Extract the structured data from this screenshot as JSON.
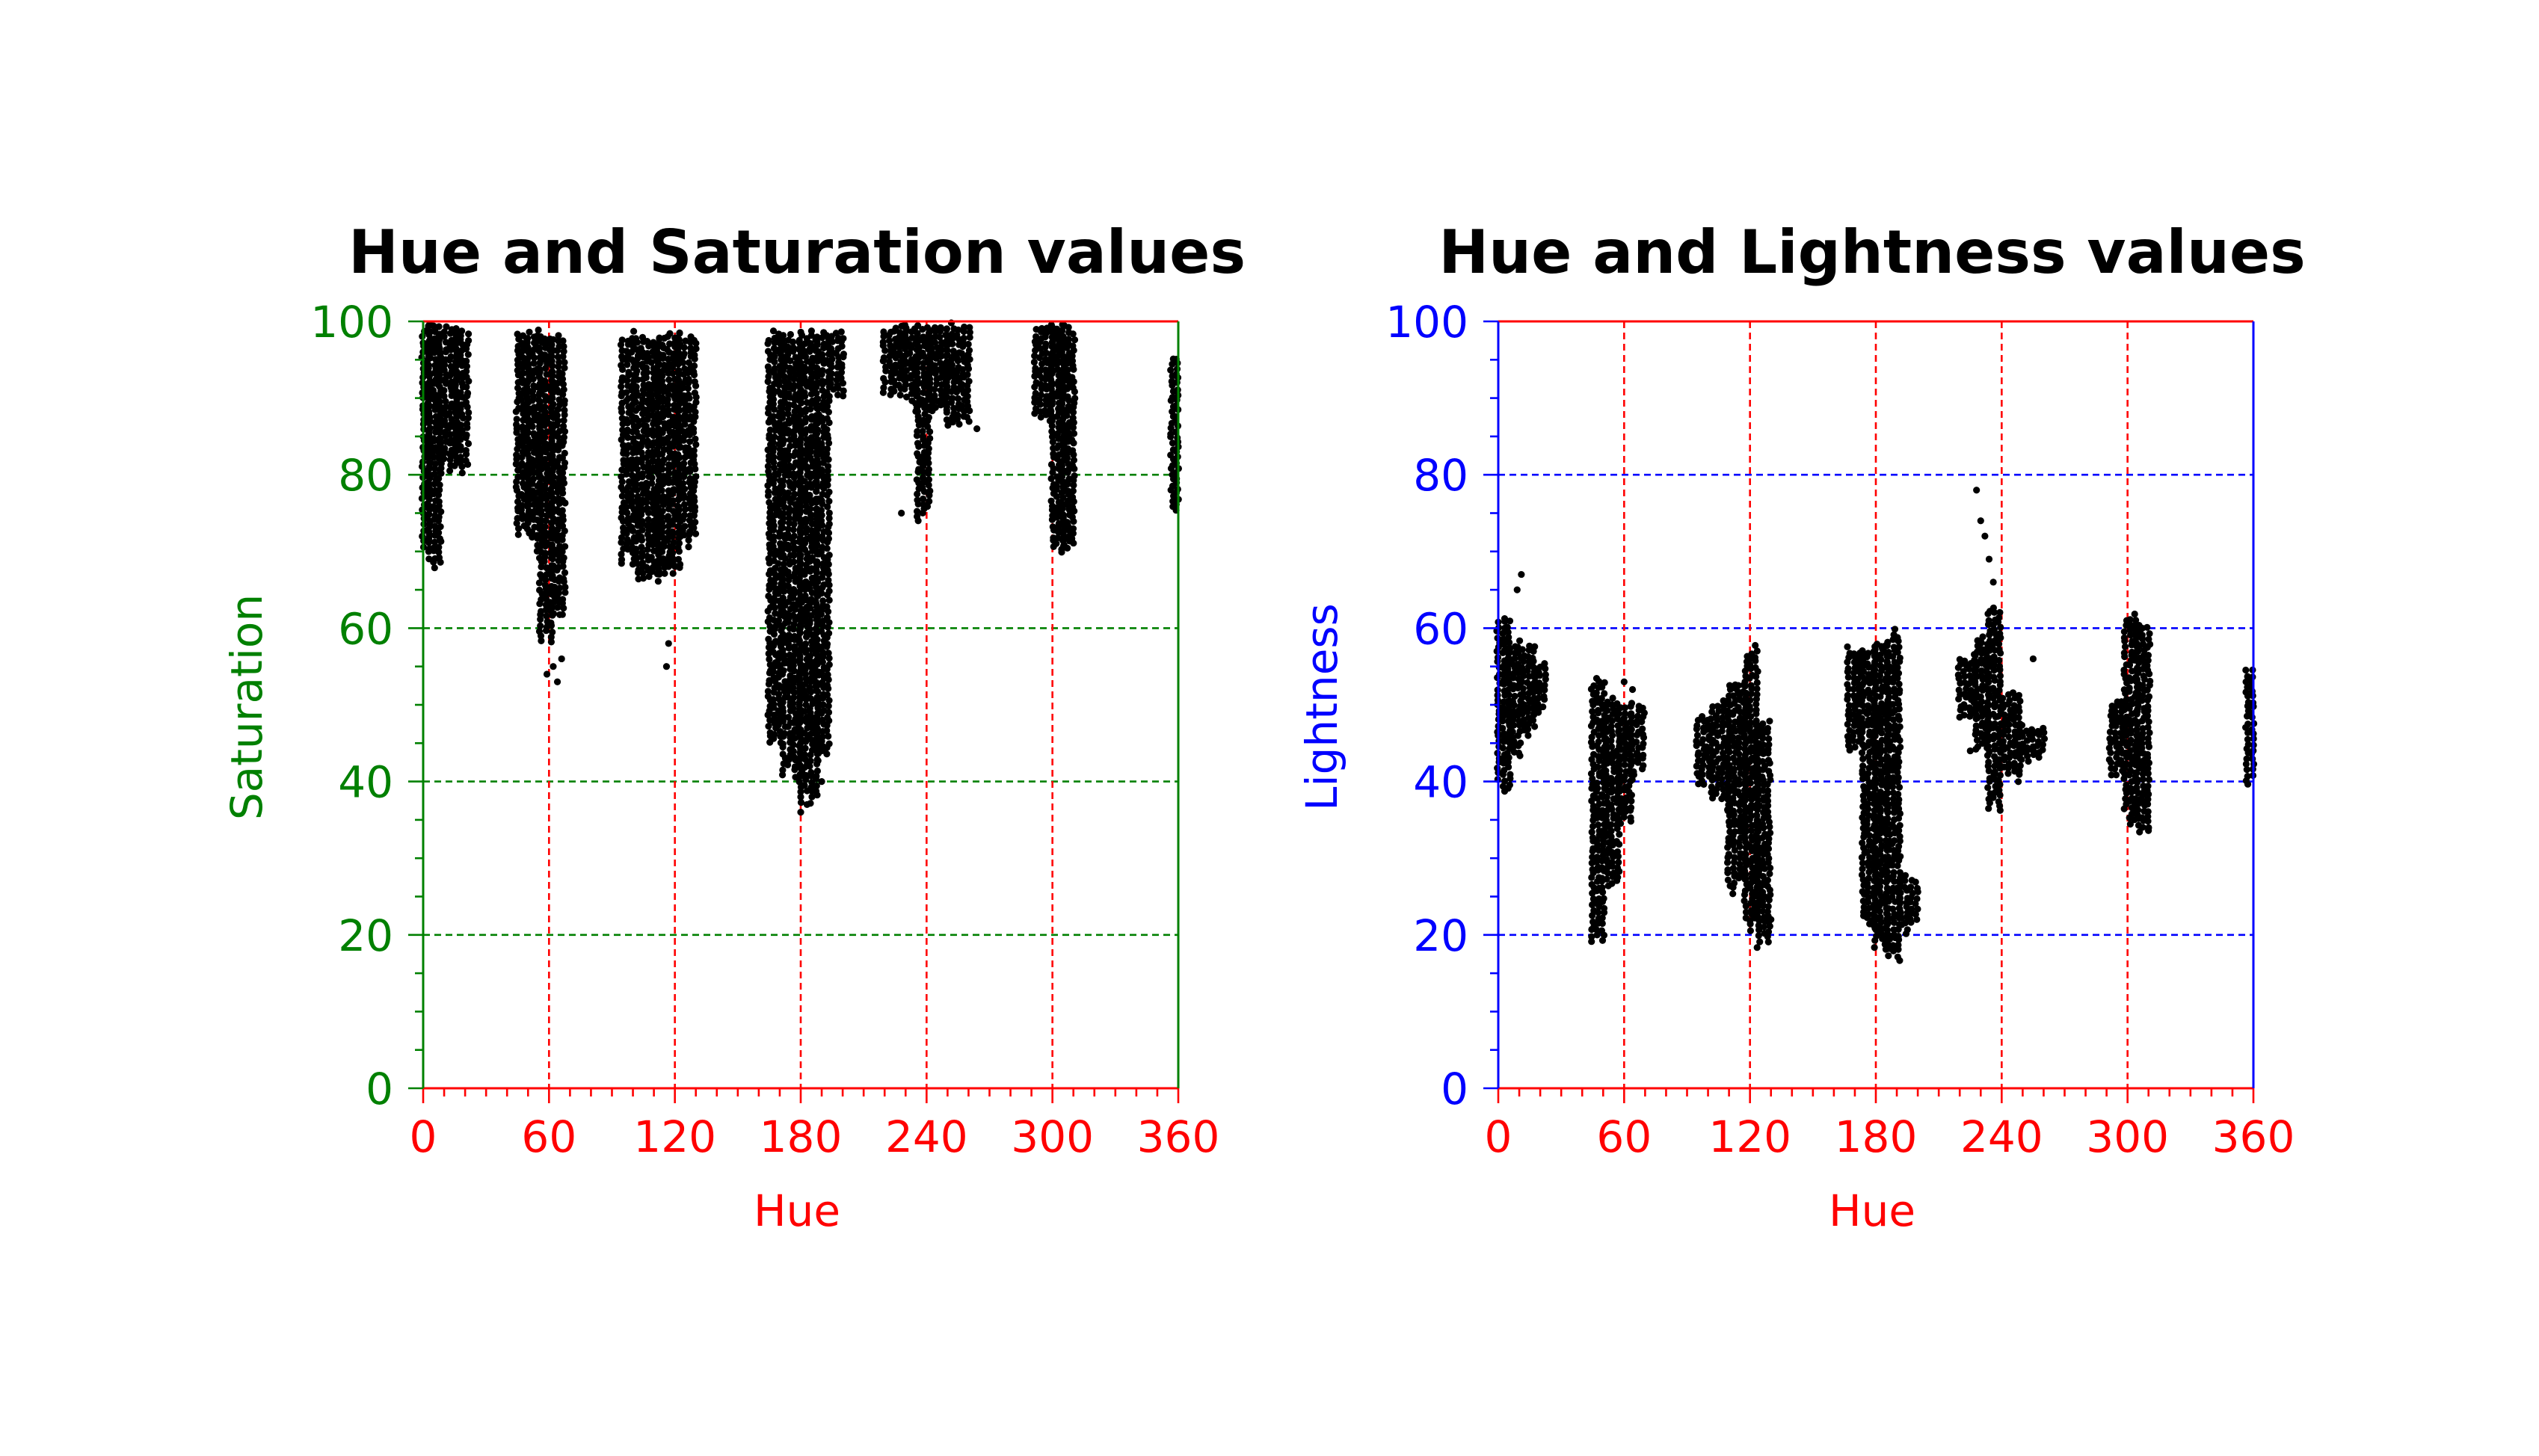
{
  "colors": {
    "hue_axis": "#ff0000",
    "saturation_axis": "#008000",
    "lightness_axis": "#0000ff",
    "points": "#000000",
    "background": "#ffffff"
  },
  "chart_data": [
    {
      "type": "scatter",
      "title": "Hue and Saturation values",
      "xlabel": "Hue",
      "ylabel": "Saturation",
      "xlim": [
        0,
        360
      ],
      "ylim": [
        0,
        100
      ],
      "xticks": [
        0,
        60,
        120,
        180,
        240,
        300,
        360
      ],
      "yticks": [
        0,
        20,
        40,
        60,
        80,
        100
      ],
      "x_minor_step": 10,
      "y_minor_step": 5,
      "grid": true,
      "grid_style": "dashed",
      "x_axis_color": "#ff0000",
      "y_axis_color": "#008000",
      "clusters": [
        {
          "x": [
            0,
            3
          ],
          "y_top": 100,
          "y_bottom": 70
        },
        {
          "x": [
            3,
            8
          ],
          "y_top": 100,
          "y_bottom": 67
        },
        {
          "x": [
            8,
            16
          ],
          "y_top": 100,
          "y_bottom": 80
        },
        {
          "x": [
            16,
            23
          ],
          "y_top": 100,
          "y_bottom": 80
        },
        {
          "x": [
            45,
            50
          ],
          "y_top": 99,
          "y_bottom": 72
        },
        {
          "x": [
            50,
            56
          ],
          "y_top": 99,
          "y_bottom": 70
        },
        {
          "x": [
            56,
            62
          ],
          "y_top": 99,
          "y_bottom": 58
        },
        {
          "x": [
            62,
            69
          ],
          "y_top": 99,
          "y_bottom": 60
        },
        {
          "x": [
            95,
            102
          ],
          "y_top": 99,
          "y_bottom": 68
        },
        {
          "x": [
            102,
            112
          ],
          "y_top": 99,
          "y_bottom": 66
        },
        {
          "x": [
            112,
            122
          ],
          "y_top": 99,
          "y_bottom": 66
        },
        {
          "x": [
            122,
            130
          ],
          "y_top": 99,
          "y_bottom": 70
        },
        {
          "x": [
            165,
            172
          ],
          "y_top": 99,
          "y_bottom": 44
        },
        {
          "x": [
            172,
            180
          ],
          "y_top": 99,
          "y_bottom": 40
        },
        {
          "x": [
            180,
            188
          ],
          "y_top": 99,
          "y_bottom": 37
        },
        {
          "x": [
            188,
            195
          ],
          "y_top": 99,
          "y_bottom": 42
        },
        {
          "x": [
            195,
            200
          ],
          "y_top": 99,
          "y_bottom": 90
        },
        {
          "x": [
            220,
            230
          ],
          "y_top": 100,
          "y_bottom": 90
        },
        {
          "x": [
            230,
            236
          ],
          "y_top": 100,
          "y_bottom": 88
        },
        {
          "x": [
            236,
            242
          ],
          "y_top": 100,
          "y_bottom": 74
        },
        {
          "x": [
            242,
            250
          ],
          "y_top": 100,
          "y_bottom": 88
        },
        {
          "x": [
            250,
            260
          ],
          "y_top": 100,
          "y_bottom": 86
        },
        {
          "x": [
            292,
            300
          ],
          "y_top": 100,
          "y_bottom": 87
        },
        {
          "x": [
            300,
            305
          ],
          "y_top": 100,
          "y_bottom": 69
        },
        {
          "x": [
            305,
            310
          ],
          "y_top": 100,
          "y_bottom": 70
        },
        {
          "x": [
            357,
            360
          ],
          "y_top": 96,
          "y_bottom": 74
        }
      ],
      "outliers": [
        [
          59,
          54
        ],
        [
          62,
          55
        ],
        [
          64,
          53
        ],
        [
          66,
          56
        ],
        [
          116,
          55
        ],
        [
          117,
          58
        ],
        [
          180,
          36
        ],
        [
          183,
          37
        ],
        [
          190,
          40
        ],
        [
          228,
          75
        ],
        [
          236,
          74
        ],
        [
          264,
          86
        ]
      ]
    },
    {
      "type": "scatter",
      "title": "Hue and Lightness values",
      "xlabel": "Hue",
      "ylabel": "Lightness",
      "xlim": [
        0,
        360
      ],
      "ylim": [
        0,
        100
      ],
      "xticks": [
        0,
        60,
        120,
        180,
        240,
        300,
        360
      ],
      "yticks": [
        0,
        20,
        40,
        60,
        80,
        100
      ],
      "x_minor_step": 10,
      "y_minor_step": 5,
      "grid": true,
      "grid_style": "dashed",
      "x_axis_color": "#ff0000",
      "y_axis_color": "#0000ff",
      "clusters": [
        {
          "x": [
            0,
            5
          ],
          "y_top": 62,
          "y_bottom": 38
        },
        {
          "x": [
            5,
            12
          ],
          "y_top": 59,
          "y_bottom": 42
        },
        {
          "x": [
            12,
            17
          ],
          "y_top": 58,
          "y_bottom": 45
        },
        {
          "x": [
            17,
            24
          ],
          "y_top": 56,
          "y_bottom": 48
        },
        {
          "x": [
            45,
            52
          ],
          "y_top": 54,
          "y_bottom": 19
        },
        {
          "x": [
            52,
            58
          ],
          "y_top": 51,
          "y_bottom": 26
        },
        {
          "x": [
            58,
            64
          ],
          "y_top": 51,
          "y_bottom": 34
        },
        {
          "x": [
            64,
            70
          ],
          "y_top": 50,
          "y_bottom": 40
        },
        {
          "x": [
            95,
            102
          ],
          "y_top": 49,
          "y_bottom": 39
        },
        {
          "x": [
            102,
            110
          ],
          "y_top": 51,
          "y_bottom": 36
        },
        {
          "x": [
            110,
            118
          ],
          "y_top": 53,
          "y_bottom": 25
        },
        {
          "x": [
            118,
            124
          ],
          "y_top": 58,
          "y_bottom": 20
        },
        {
          "x": [
            124,
            130
          ],
          "y_top": 48,
          "y_bottom": 18
        },
        {
          "x": [
            167,
            174
          ],
          "y_top": 58,
          "y_bottom": 43
        },
        {
          "x": [
            174,
            180
          ],
          "y_top": 58,
          "y_bottom": 20
        },
        {
          "x": [
            180,
            186
          ],
          "y_top": 59,
          "y_bottom": 18
        },
        {
          "x": [
            186,
            192
          ],
          "y_top": 60,
          "y_bottom": 16
        },
        {
          "x": [
            192,
            200
          ],
          "y_top": 28,
          "y_bottom": 20
        },
        {
          "x": [
            220,
            228
          ],
          "y_top": 57,
          "y_bottom": 47
        },
        {
          "x": [
            228,
            234
          ],
          "y_top": 59,
          "y_bottom": 43
        },
        {
          "x": [
            234,
            241
          ],
          "y_top": 63,
          "y_bottom": 36
        },
        {
          "x": [
            241,
            250
          ],
          "y_top": 52,
          "y_bottom": 40
        },
        {
          "x": [
            250,
            260
          ],
          "y_top": 48,
          "y_bottom": 42
        },
        {
          "x": [
            292,
            299
          ],
          "y_top": 51,
          "y_bottom": 40
        },
        {
          "x": [
            299,
            305
          ],
          "y_top": 62,
          "y_bottom": 34
        },
        {
          "x": [
            305,
            310
          ],
          "y_top": 61,
          "y_bottom": 32
        },
        {
          "x": [
            357,
            360
          ],
          "y_top": 55,
          "y_bottom": 39
        }
      ],
      "outliers": [
        [
          11,
          67
        ],
        [
          9,
          65
        ],
        [
          228,
          78
        ],
        [
          230,
          74
        ],
        [
          232,
          72
        ],
        [
          234,
          69
        ],
        [
          236,
          66
        ],
        [
          255,
          56
        ],
        [
          60,
          53
        ],
        [
          64,
          52
        ],
        [
          225,
          44
        ],
        [
          130,
          22
        ]
      ]
    }
  ]
}
